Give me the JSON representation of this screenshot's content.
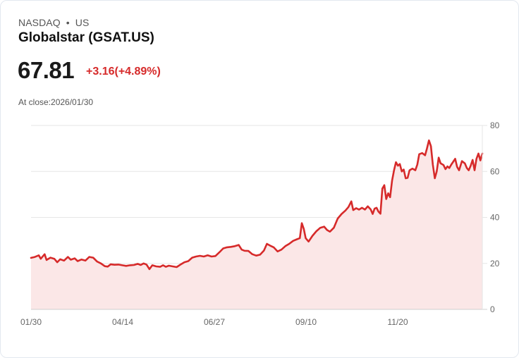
{
  "header": {
    "exchange": "NASDAQ",
    "separator": "•",
    "region": "US",
    "title": "Globalstar (GSAT.US)",
    "price": "67.81",
    "change": "+3.16(+4.89%)",
    "close_label": "At close:2026/01/30"
  },
  "colors": {
    "line": "#d62a2a",
    "fill": "#fbe7e7",
    "grid": "#e6e6e6",
    "change_positive": "#d62a2a"
  },
  "chart_data": {
    "type": "area",
    "title": "Globalstar (GSAT.US)",
    "xlabel": "",
    "ylabel": "",
    "ylim": [
      0,
      80
    ],
    "y_ticks": [
      "0",
      "20",
      "40",
      "60",
      "80"
    ],
    "x_ticks": [
      "01/30",
      "04/14",
      "06/27",
      "09/10",
      "11/20"
    ],
    "grid": true,
    "y_axis_position": "right",
    "anchors": [
      [
        0,
        22.4
      ],
      [
        4,
        22.8
      ],
      [
        8,
        23.5
      ],
      [
        10,
        22.0
      ],
      [
        14,
        24.0
      ],
      [
        16,
        21.5
      ],
      [
        20,
        22.5
      ],
      [
        24,
        22.0
      ],
      [
        27,
        20.5
      ],
      [
        30,
        21.8
      ],
      [
        34,
        21.2
      ],
      [
        38,
        22.8
      ],
      [
        41,
        21.6
      ],
      [
        45,
        22.2
      ],
      [
        48,
        21.0
      ],
      [
        52,
        21.7
      ],
      [
        56,
        21.2
      ],
      [
        60,
        22.8
      ],
      [
        64,
        22.5
      ],
      [
        68,
        20.8
      ],
      [
        72,
        20.0
      ],
      [
        76,
        18.8
      ],
      [
        79,
        18.6
      ],
      [
        82,
        19.6
      ],
      [
        86,
        19.4
      ],
      [
        90,
        19.5
      ],
      [
        94,
        19.2
      ],
      [
        98,
        18.9
      ],
      [
        102,
        19.2
      ],
      [
        106,
        19.3
      ],
      [
        110,
        19.8
      ],
      [
        113,
        19.3
      ],
      [
        116,
        20.0
      ],
      [
        119,
        19.5
      ],
      [
        122,
        17.5
      ],
      [
        125,
        19.2
      ],
      [
        129,
        18.7
      ],
      [
        133,
        18.5
      ],
      [
        136,
        19.2
      ],
      [
        139,
        18.5
      ],
      [
        142,
        19.0
      ],
      [
        146,
        18.7
      ],
      [
        150,
        18.4
      ],
      [
        154,
        19.5
      ],
      [
        158,
        20.5
      ],
      [
        162,
        21.0
      ],
      [
        166,
        22.5
      ],
      [
        170,
        23.0
      ],
      [
        174,
        23.3
      ],
      [
        178,
        23.0
      ],
      [
        182,
        23.5
      ],
      [
        186,
        23.0
      ],
      [
        190,
        23.2
      ],
      [
        194,
        24.8
      ],
      [
        198,
        26.5
      ],
      [
        202,
        27.0
      ],
      [
        206,
        27.2
      ],
      [
        210,
        27.5
      ],
      [
        214,
        28.0
      ],
      [
        217,
        26.0
      ],
      [
        220,
        25.5
      ],
      [
        224,
        25.4
      ],
      [
        228,
        24.0
      ],
      [
        232,
        23.4
      ],
      [
        236,
        23.8
      ],
      [
        240,
        25.6
      ],
      [
        243,
        28.5
      ],
      [
        246,
        27.8
      ],
      [
        250,
        27.0
      ],
      [
        254,
        25.2
      ],
      [
        258,
        26.0
      ],
      [
        262,
        27.5
      ],
      [
        266,
        28.5
      ],
      [
        270,
        29.8
      ],
      [
        274,
        30.5
      ],
      [
        277,
        31.0
      ],
      [
        279,
        37.5
      ],
      [
        281,
        35.0
      ],
      [
        283,
        31.0
      ],
      [
        286,
        29.5
      ],
      [
        290,
        32.0
      ],
      [
        294,
        34.0
      ],
      [
        298,
        35.5
      ],
      [
        302,
        36.0
      ],
      [
        305,
        34.5
      ],
      [
        308,
        33.8
      ],
      [
        312,
        35.5
      ],
      [
        316,
        39.5
      ],
      [
        320,
        41.5
      ],
      [
        324,
        43.0
      ],
      [
        327,
        44.5
      ],
      [
        330,
        47.0
      ],
      [
        332,
        43.2
      ],
      [
        335,
        44.0
      ],
      [
        338,
        43.4
      ],
      [
        341,
        44.2
      ],
      [
        344,
        43.4
      ],
      [
        347,
        44.8
      ],
      [
        350,
        43.5
      ],
      [
        352,
        41.5
      ],
      [
        354,
        43.8
      ],
      [
        356,
        44.2
      ],
      [
        358,
        42.5
      ],
      [
        360,
        41.6
      ],
      [
        362,
        52.5
      ],
      [
        364,
        54.0
      ],
      [
        366,
        48.0
      ],
      [
        368,
        50.5
      ],
      [
        370,
        48.8
      ],
      [
        372,
        56.0
      ],
      [
        374,
        60.5
      ],
      [
        376,
        64.0
      ],
      [
        378,
        62.5
      ],
      [
        380,
        63.2
      ],
      [
        382,
        60.0
      ],
      [
        384,
        60.8
      ],
      [
        386,
        57.0
      ],
      [
        388,
        57.2
      ],
      [
        390,
        60.5
      ],
      [
        393,
        61.2
      ],
      [
        396,
        60.5
      ],
      [
        398,
        63.0
      ],
      [
        400,
        67.5
      ],
      [
        403,
        68.0
      ],
      [
        406,
        67.0
      ],
      [
        408,
        70.0
      ],
      [
        410,
        73.5
      ],
      [
        412,
        71.0
      ],
      [
        414,
        63.0
      ],
      [
        416,
        57.0
      ],
      [
        418,
        60.0
      ],
      [
        420,
        66.0
      ],
      [
        422,
        63.5
      ],
      [
        425,
        62.8
      ],
      [
        427,
        61.0
      ],
      [
        429,
        62.2
      ],
      [
        431,
        61.5
      ],
      [
        433,
        63.0
      ],
      [
        435,
        64.2
      ],
      [
        437,
        65.5
      ],
      [
        439,
        62.0
      ],
      [
        441,
        60.5
      ],
      [
        444,
        64.5
      ],
      [
        447,
        63.5
      ],
      [
        449,
        61.5
      ],
      [
        451,
        60.5
      ],
      [
        453,
        62.5
      ],
      [
        455,
        65.0
      ],
      [
        457,
        60.5
      ],
      [
        459,
        65.5
      ],
      [
        461,
        67.8
      ],
      [
        463,
        64.8
      ],
      [
        465,
        67.8
      ]
    ],
    "anchor_x_domain": [
      0,
      465
    ],
    "start_value": 22.4,
    "end_value": 67.81,
    "high": 73.5,
    "low": 17.5
  }
}
